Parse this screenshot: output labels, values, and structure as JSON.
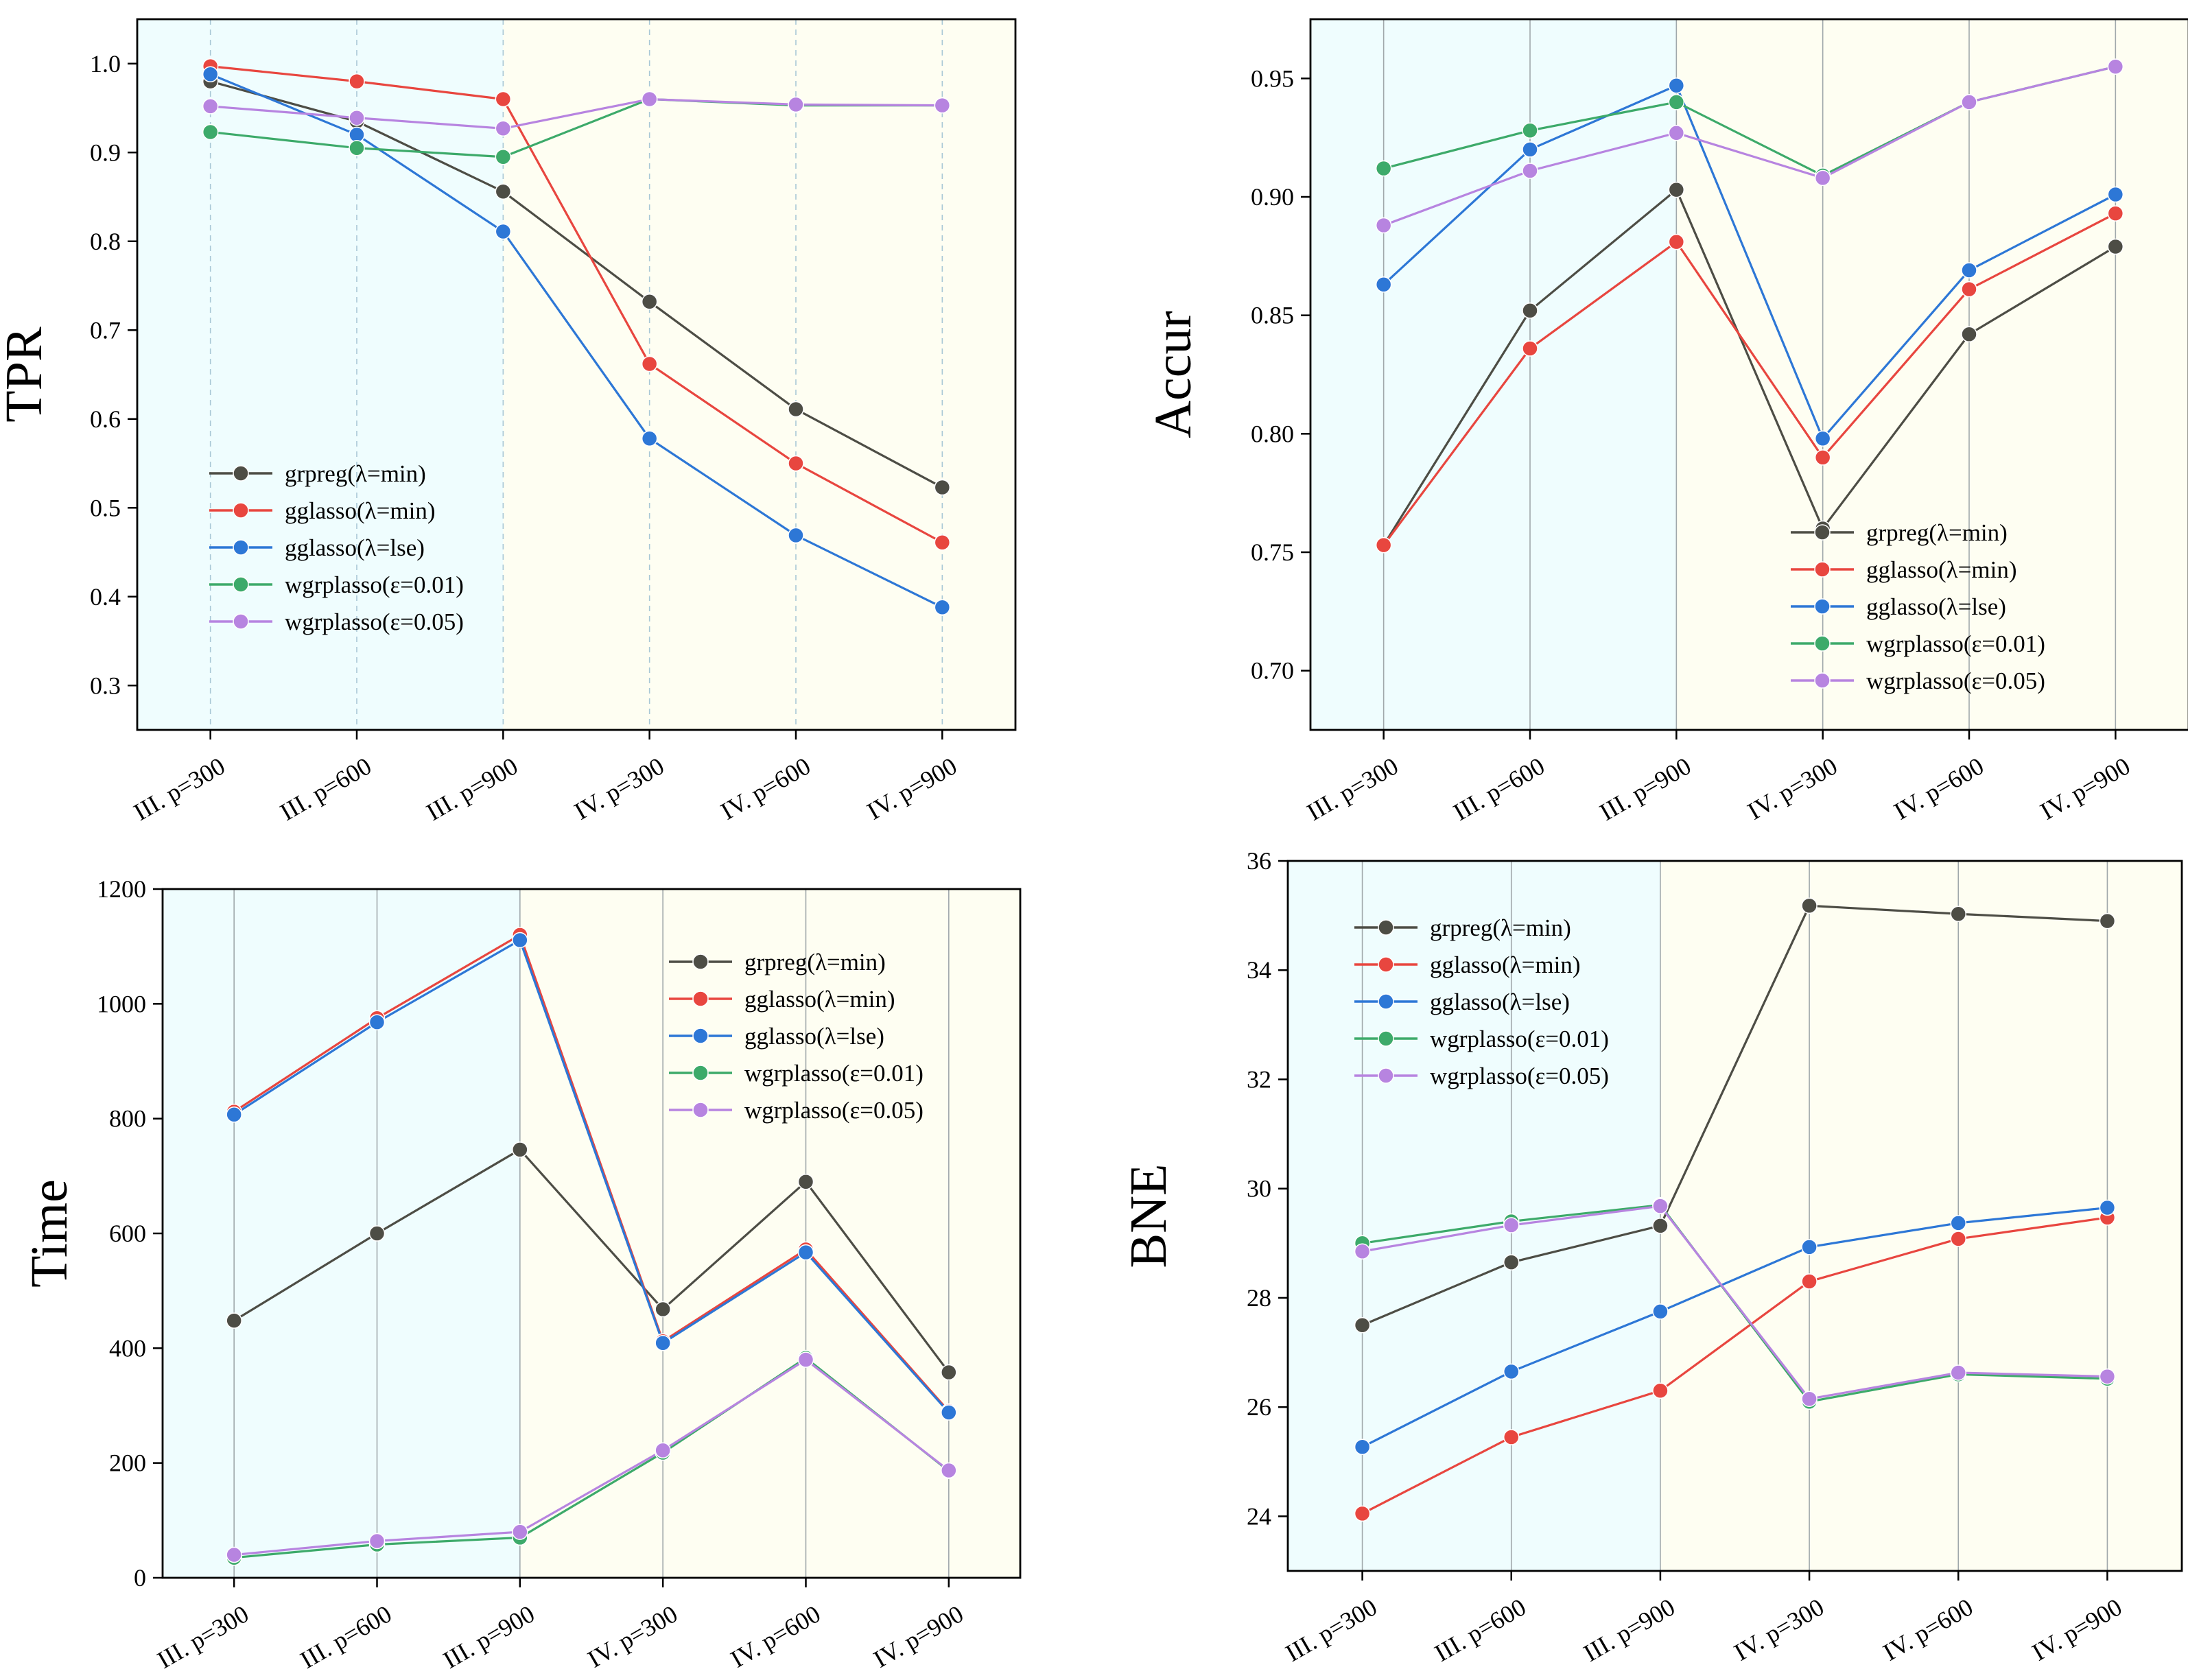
{
  "colors": {
    "grpreg": "#4d4d45",
    "gglasso_min": "#e8463f",
    "gglasso_lse": "#2d77d6",
    "wgrplasso_001": "#3daa6a",
    "wgrplasso_005": "#b784e0",
    "bg_left": "#effdfe",
    "bg_right": "#fefef2"
  },
  "chart_data": [
    {
      "id": "tpr",
      "type": "line",
      "ylabel": "TPR",
      "xlabel": "",
      "categories": [
        "III. p=300",
        "III. p=600",
        "III. p=900",
        "IV. p=300",
        "IV. p=600",
        "IV. p=900"
      ],
      "ylim": [
        0.25,
        1.05
      ],
      "yticks": [
        0.3,
        0.4,
        0.5,
        0.6,
        0.7,
        0.8,
        0.9,
        1.0
      ],
      "ytick_labels": [
        "0.3",
        "0.4",
        "0.5",
        "0.6",
        "0.7",
        "0.8",
        "0.9",
        "1.0"
      ],
      "grid": "vertical-dashed",
      "legend": "bottom-left",
      "series": [
        {
          "name": "grpreg(λ=min)",
          "key": "grpreg",
          "values": [
            0.98,
            0.935,
            0.856,
            0.732,
            0.611,
            0.523
          ]
        },
        {
          "name": "gglasso(λ=min)",
          "key": "gglasso_min",
          "values": [
            0.997,
            0.98,
            0.96,
            0.662,
            0.55,
            0.461
          ]
        },
        {
          "name": "gglasso(λ=lse)",
          "key": "gglasso_lse",
          "values": [
            0.988,
            0.92,
            0.811,
            0.578,
            0.469,
            0.388
          ]
        },
        {
          "name": "wgrplasso(ε=0.01)",
          "key": "wgrplasso_001",
          "values": [
            0.923,
            0.905,
            0.895,
            0.96,
            0.953,
            0.953
          ]
        },
        {
          "name": "wgrplasso(ε=0.05)",
          "key": "wgrplasso_005",
          "values": [
            0.952,
            0.939,
            0.927,
            0.96,
            0.954,
            0.953
          ]
        }
      ]
    },
    {
      "id": "accur",
      "type": "line",
      "ylabel": "Accur",
      "xlabel": "",
      "categories": [
        "III. p=300",
        "III. p=600",
        "III. p=900",
        "IV. p=300",
        "IV. p=600",
        "IV. p=900"
      ],
      "ylim": [
        0.675,
        0.975
      ],
      "yticks": [
        0.7,
        0.75,
        0.8,
        0.85,
        0.9,
        0.95
      ],
      "ytick_labels": [
        "0.70",
        "0.75",
        "0.80",
        "0.85",
        "0.90",
        "0.95"
      ],
      "grid": "vertical-solid",
      "legend": "bottom-right",
      "series": [
        {
          "name": "grpreg(λ=min)",
          "key": "grpreg",
          "values": [
            0.753,
            0.852,
            0.903,
            0.76,
            0.842,
            0.879
          ]
        },
        {
          "name": "gglasso(λ=min)",
          "key": "gglasso_min",
          "values": [
            0.753,
            0.836,
            0.881,
            0.79,
            0.861,
            0.893
          ]
        },
        {
          "name": "gglasso(λ=lse)",
          "key": "gglasso_lse",
          "values": [
            0.863,
            0.92,
            0.947,
            0.798,
            0.869,
            0.901
          ]
        },
        {
          "name": "wgrplasso(ε=0.01)",
          "key": "wgrplasso_001",
          "values": [
            0.912,
            0.928,
            0.94,
            0.909,
            0.94,
            0.955
          ]
        },
        {
          "name": "wgrplasso(ε=0.05)",
          "key": "wgrplasso_005",
          "values": [
            0.888,
            0.911,
            0.927,
            0.908,
            0.94,
            0.955
          ]
        }
      ]
    },
    {
      "id": "time",
      "type": "line",
      "ylabel": "Time",
      "xlabel": "",
      "categories": [
        "III. p=300",
        "III. p=600",
        "III. p=900",
        "IV. p=300",
        "IV. p=600",
        "IV. p=900"
      ],
      "ylim": [
        0,
        1200
      ],
      "yticks": [
        0,
        200,
        400,
        600,
        800,
        1000,
        1200
      ],
      "ytick_labels": [
        "0",
        "200",
        "400",
        "600",
        "800",
        "1000",
        "1200"
      ],
      "grid": "vertical-solid",
      "legend": "top-right",
      "series": [
        {
          "name": "grpreg(λ=min)",
          "key": "grpreg",
          "values": [
            448,
            600,
            746,
            468,
            690,
            358
          ]
        },
        {
          "name": "gglasso(λ=min)",
          "key": "gglasso_min",
          "values": [
            812,
            975,
            1120,
            412,
            572,
            290
          ]
        },
        {
          "name": "gglasso(λ=lse)",
          "key": "gglasso_lse",
          "values": [
            807,
            968,
            1111,
            409,
            567,
            288
          ]
        },
        {
          "name": "wgrplasso(ε=0.01)",
          "key": "wgrplasso_001",
          "values": [
            35,
            58,
            70,
            218,
            383,
            186
          ]
        },
        {
          "name": "wgrplasso(ε=0.05)",
          "key": "wgrplasso_005",
          "values": [
            40,
            64,
            80,
            222,
            380,
            187
          ]
        }
      ]
    },
    {
      "id": "bne",
      "type": "line",
      "ylabel": "BNE",
      "xlabel": "",
      "categories": [
        "III. p=300",
        "III. p=600",
        "III. p=900",
        "IV. p=300",
        "IV. p=600",
        "IV. p=900"
      ],
      "ylim": [
        23,
        36
      ],
      "yticks": [
        24,
        26,
        28,
        30,
        32,
        34,
        36
      ],
      "ytick_labels": [
        "24",
        "26",
        "28",
        "30",
        "32",
        "34",
        "36"
      ],
      "grid": "vertical-solid",
      "legend": "top-left",
      "series": [
        {
          "name": "grpreg(λ=min)",
          "key": "grpreg",
          "values": [
            27.5,
            28.65,
            29.32,
            35.18,
            35.03,
            34.9
          ]
        },
        {
          "name": "gglasso(λ=min)",
          "key": "gglasso_min",
          "values": [
            24.05,
            25.45,
            26.3,
            28.3,
            29.08,
            29.47
          ]
        },
        {
          "name": "gglasso(λ=lse)",
          "key": "gglasso_lse",
          "values": [
            25.27,
            26.65,
            27.75,
            28.93,
            29.37,
            29.65
          ]
        },
        {
          "name": "wgrplasso(ε=0.01)",
          "key": "wgrplasso_001",
          "values": [
            29.0,
            29.4,
            29.7,
            26.1,
            26.6,
            26.52
          ]
        },
        {
          "name": "wgrplasso(ε=0.05)",
          "key": "wgrplasso_005",
          "values": [
            28.85,
            29.33,
            29.68,
            26.15,
            26.63,
            26.56
          ]
        }
      ]
    }
  ]
}
